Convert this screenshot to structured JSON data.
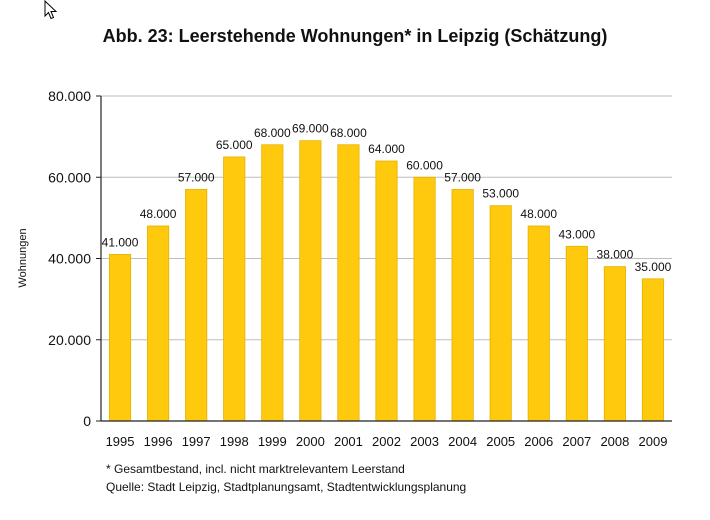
{
  "chart_data": {
    "type": "bar",
    "title": "Abb. 23: Leerstehende Wohnungen* in Leipzig (Schätzung)",
    "xlabel": "",
    "ylabel": "Wohnungen",
    "categories": [
      "1995",
      "1996",
      "1997",
      "1998",
      "1999",
      "2000",
      "2001",
      "2002",
      "2003",
      "2004",
      "2005",
      "2006",
      "2007",
      "2008",
      "2009"
    ],
    "values": [
      41000,
      48000,
      57000,
      65000,
      68000,
      69000,
      68000,
      64000,
      60000,
      57000,
      53000,
      48000,
      43000,
      38000,
      35000
    ],
    "data_labels": [
      "41.000",
      "48.000",
      "57.000",
      "65.000",
      "68.000",
      "69.000",
      "68.000",
      "64.000",
      "60.000",
      "57.000",
      "53.000",
      "48.000",
      "43.000",
      "38.000",
      "35.000"
    ],
    "ylim": [
      0,
      80000
    ],
    "yticks": [
      0,
      20000,
      40000,
      60000,
      80000
    ],
    "ytick_labels": [
      "0",
      "20.000",
      "40.000",
      "60.000",
      "80.000"
    ],
    "grid": true,
    "legend": "none",
    "colors": {
      "bar": "#FFC90E",
      "bar_edge": "#E8B000",
      "grid": "#BDBDBD",
      "axis": "#222222"
    }
  },
  "footnotes": {
    "note": "* Gesamtbestand, incl. nicht marktrelevantem Leerstand",
    "source": "Quelle: Stadt Leipzig, Stadtplanungsamt, Stadtentwicklungsplanung"
  }
}
